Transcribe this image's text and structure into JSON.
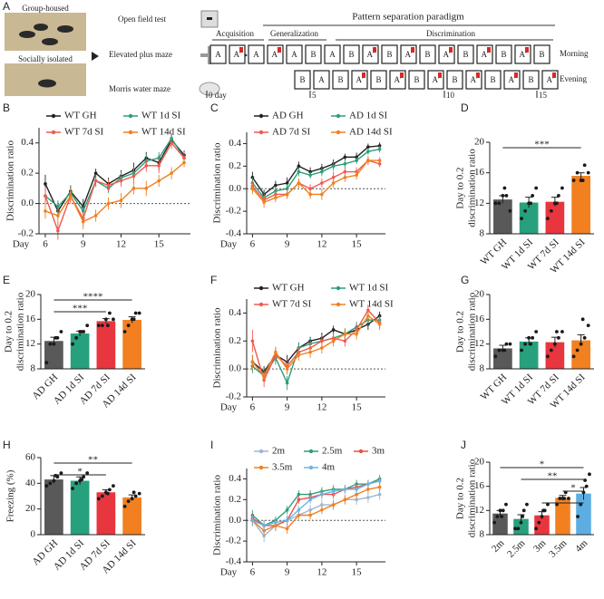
{
  "diagram": {
    "panel": "A",
    "housing": [
      "Group-housed",
      "Socially isolated"
    ],
    "tests": [
      "Open field test",
      "Elevated plus maze",
      "Morris water maze"
    ],
    "paradigm": "Pattern separation paradigm",
    "phases": [
      "Acquisition",
      "Generalization",
      "Discrimination"
    ],
    "sessions": [
      "Morning",
      "Evening"
    ],
    "morning": [
      "A",
      "A'",
      "A",
      "A'",
      "A",
      "B",
      "A",
      "B",
      "A'",
      "B",
      "A'",
      "B",
      "A'",
      "B",
      "A'",
      "B",
      "A'",
      "B"
    ],
    "evening": [
      "B",
      "A",
      "B",
      "A'",
      "B",
      "A'",
      "B",
      "A'",
      "B",
      "A'",
      "B",
      "A'",
      "B",
      "A'"
    ],
    "days": [
      "0 day",
      "5",
      "10",
      "15"
    ]
  },
  "chart_data": [
    {
      "panel": "B",
      "type": "line",
      "ylabel": "Discrimination ratio",
      "xlabel": "Day",
      "x": [
        6,
        7,
        8,
        9,
        10,
        11,
        12,
        13,
        14,
        15,
        16,
        17
      ],
      "xlim": [
        5.5,
        17.5
      ],
      "xticks": [
        6,
        9,
        12,
        15
      ],
      "ylim": [
        -0.2,
        0.5
      ],
      "yticks": [
        -0.2,
        {
          "value": 0,
          "label": "0.0"
        },
        0.2,
        0.4
      ],
      "zero_line": true,
      "series": [
        {
          "name": "WT GH",
          "color": "#222222",
          "values": [
            0.13,
            -0.05,
            0.08,
            -0.02,
            0.2,
            0.13,
            0.18,
            0.22,
            0.3,
            0.27,
            0.42,
            0.32
          ],
          "errors": [
            0.06,
            0.05,
            0.04,
            0.05,
            0.03,
            0.04,
            0.04,
            0.05,
            0.04,
            0.05,
            0.03,
            0.03
          ]
        },
        {
          "name": "WT 1d SI",
          "color": "#2e9e7a",
          "values": [
            0.05,
            -0.02,
            0.07,
            -0.05,
            0.15,
            0.1,
            0.17,
            0.2,
            0.28,
            0.3,
            0.43,
            0.3
          ],
          "errors": [
            0.05,
            0.04,
            0.05,
            0.04,
            0.04,
            0.03,
            0.04,
            0.04,
            0.05,
            0.04,
            0.03,
            0.04
          ]
        },
        {
          "name": "WT 7d SI",
          "color": "#ef5a50",
          "values": [
            0.05,
            -0.18,
            0.05,
            -0.1,
            0.15,
            0.12,
            0.15,
            0.18,
            0.25,
            0.25,
            0.4,
            0.3
          ],
          "errors": [
            0.06,
            0.06,
            0.05,
            0.05,
            0.04,
            0.04,
            0.04,
            0.05,
            0.04,
            0.05,
            0.04,
            0.04
          ]
        },
        {
          "name": "WT 14d SI",
          "color": "#f0801f",
          "values": [
            -0.05,
            -0.08,
            0.05,
            -0.12,
            -0.08,
            0.0,
            0.02,
            0.1,
            0.1,
            0.15,
            0.2,
            0.27
          ],
          "errors": [
            0.05,
            0.05,
            0.04,
            0.05,
            0.04,
            0.04,
            0.05,
            0.04,
            0.05,
            0.04,
            0.04,
            0.03
          ]
        }
      ]
    },
    {
      "panel": "C",
      "type": "line",
      "ylabel": "Discrimination ratio",
      "xlabel": "Day",
      "x": [
        6,
        7,
        8,
        9,
        10,
        11,
        12,
        13,
        14,
        15,
        16,
        17
      ],
      "xlim": [
        5.5,
        17.5
      ],
      "xticks": [
        6,
        9,
        12,
        15
      ],
      "ylim": [
        -0.4,
        0.5
      ],
      "yticks": [
        -0.4,
        -0.2,
        {
          "value": 0,
          "label": "0.0"
        },
        0.2,
        0.4
      ],
      "zero_line": true,
      "series": [
        {
          "name": "AD GH",
          "color": "#222222",
          "values": [
            0.1,
            -0.05,
            0.03,
            0.05,
            0.2,
            0.15,
            0.18,
            0.22,
            0.28,
            0.28,
            0.37,
            0.38
          ],
          "errors": [
            0.05,
            0.04,
            0.04,
            0.05,
            0.04,
            0.04,
            0.04,
            0.04,
            0.03,
            0.04,
            0.03,
            0.03
          ]
        },
        {
          "name": "AD 1d SI",
          "color": "#2e9e7a",
          "values": [
            0.05,
            -0.08,
            -0.02,
            0.0,
            0.15,
            0.12,
            0.15,
            0.2,
            0.22,
            0.25,
            0.33,
            0.35
          ],
          "errors": [
            0.05,
            0.05,
            0.04,
            0.04,
            0.04,
            0.03,
            0.04,
            0.04,
            0.04,
            0.03,
            0.03,
            0.03
          ]
        },
        {
          "name": "AD 7d SI",
          "color": "#ef5a50",
          "values": [
            0.02,
            -0.1,
            -0.05,
            -0.05,
            0.05,
            0.0,
            0.05,
            0.1,
            0.15,
            0.15,
            0.25,
            0.22
          ],
          "errors": [
            0.05,
            0.05,
            0.05,
            0.04,
            0.04,
            0.04,
            0.04,
            0.05,
            0.04,
            0.04,
            0.04,
            0.03
          ]
        },
        {
          "name": "AD 14d SI",
          "color": "#f0801f",
          "values": [
            0.0,
            -0.12,
            -0.08,
            -0.05,
            0.05,
            -0.05,
            -0.05,
            0.05,
            0.1,
            0.12,
            0.25,
            0.25
          ],
          "errors": [
            0.05,
            0.05,
            0.04,
            0.04,
            0.04,
            0.04,
            0.05,
            0.04,
            0.04,
            0.04,
            0.03,
            0.03
          ]
        }
      ]
    },
    {
      "panel": "D",
      "type": "bar",
      "ylabel": [
        "Day to 0.2",
        "discrimination ratio"
      ],
      "categories": [
        "WT GH",
        "WT 1d SI",
        "WT 7d SI",
        "WT 14d SI"
      ],
      "colors": [
        "#595959",
        "#27a07d",
        "#e8363f",
        "#f28021"
      ],
      "values": [
        12.5,
        12.1,
        12.2,
        15.6
      ],
      "errors": [
        0.5,
        0.7,
        0.6,
        0.4
      ],
      "points": [
        [
          12,
          12,
          13,
          13,
          11,
          14
        ],
        [
          10,
          11,
          12,
          13,
          14,
          12
        ],
        [
          10,
          11,
          12,
          13,
          14,
          12
        ],
        [
          15,
          16,
          15,
          17,
          16,
          15
        ]
      ],
      "ylim": [
        8,
        20
      ],
      "yticks": [
        8,
        12,
        16,
        20
      ],
      "significance": [
        {
          "bars": [
            0,
            3
          ],
          "label": "***"
        }
      ]
    },
    {
      "panel": "E",
      "type": "bar",
      "ylabel": [
        "Day to 0.2",
        "discrimination ratio"
      ],
      "categories": [
        "AD GH",
        "AD 1d SI",
        "AD 7d SI",
        "AD 14d SI"
      ],
      "colors": [
        "#595959",
        "#27a07d",
        "#e8363f",
        "#f28021"
      ],
      "values": [
        12.5,
        13.7,
        15.7,
        15.9
      ],
      "errors": [
        0.6,
        0.4,
        0.4,
        0.5
      ],
      "points": [
        [
          9,
          12,
          12,
          13,
          14,
          13
        ],
        [
          12,
          13,
          14,
          14,
          15,
          14
        ],
        [
          15,
          15,
          16,
          17,
          16,
          15
        ],
        [
          14,
          15,
          16,
          17,
          17,
          16
        ]
      ],
      "ylim": [
        8,
        20
      ],
      "yticks": [
        8,
        12,
        16,
        20
      ],
      "significance": [
        {
          "bars": [
            0,
            3
          ],
          "label": "****"
        },
        {
          "bars": [
            0,
            2
          ],
          "label": "***"
        }
      ]
    },
    {
      "panel": "F",
      "type": "line",
      "ylabel": "Discrimination ratio",
      "xlabel": "Day",
      "x": [
        6,
        7,
        8,
        9,
        10,
        11,
        12,
        13,
        14,
        15,
        16,
        17
      ],
      "xlim": [
        5.5,
        17.5
      ],
      "xticks": [
        6,
        9,
        12,
        15
      ],
      "ylim": [
        -0.2,
        0.5
      ],
      "yticks": [
        -0.2,
        {
          "value": 0,
          "label": "0.0"
        },
        0.2,
        0.4
      ],
      "zero_line": true,
      "series": [
        {
          "name": "WT GH",
          "color": "#222222",
          "values": [
            0.05,
            -0.02,
            0.1,
            0.05,
            0.15,
            0.2,
            0.22,
            0.28,
            0.25,
            0.28,
            0.32,
            0.38
          ],
          "errors": [
            0.05,
            0.04,
            0.04,
            0.05,
            0.04,
            0.03,
            0.04,
            0.03,
            0.04,
            0.04,
            0.04,
            0.03
          ]
        },
        {
          "name": "WT 1d SI",
          "color": "#2e9e7a",
          "values": [
            0.02,
            -0.05,
            0.08,
            -0.1,
            0.15,
            0.18,
            0.2,
            0.22,
            0.25,
            0.3,
            0.35,
            0.35
          ],
          "errors": [
            0.05,
            0.04,
            0.05,
            0.05,
            0.04,
            0.04,
            0.04,
            0.04,
            0.03,
            0.04,
            0.04,
            0.03
          ]
        },
        {
          "name": "WT 7d SI",
          "color": "#ef5a50",
          "values": [
            0.2,
            -0.08,
            0.1,
            0.02,
            0.12,
            0.15,
            0.2,
            0.22,
            0.2,
            0.28,
            0.42,
            0.33
          ],
          "errors": [
            0.08,
            0.05,
            0.05,
            0.05,
            0.04,
            0.04,
            0.04,
            0.04,
            0.04,
            0.04,
            0.04,
            0.04
          ]
        },
        {
          "name": "WT 14d SI",
          "color": "#f0801f",
          "values": [
            0.05,
            -0.05,
            0.12,
            0.0,
            0.1,
            0.12,
            0.15,
            0.2,
            0.25,
            0.25,
            0.38,
            0.32
          ],
          "errors": [
            0.05,
            0.04,
            0.04,
            0.04,
            0.04,
            0.04,
            0.04,
            0.04,
            0.04,
            0.04,
            0.04,
            0.04
          ]
        }
      ]
    },
    {
      "panel": "G",
      "type": "bar",
      "ylabel": [
        "Day to 0.2",
        "discrimination ratio"
      ],
      "categories": [
        "WT GH",
        "WT 1d SI",
        "WT 7d SI",
        "WT 14d SI"
      ],
      "colors": [
        "#595959",
        "#27a07d",
        "#e8363f",
        "#f28021"
      ],
      "values": [
        11.3,
        12.4,
        12.3,
        12.6
      ],
      "errors": [
        0.5,
        0.6,
        0.8,
        0.9
      ],
      "points": [
        [
          10,
          11,
          11,
          12,
          12,
          11
        ],
        [
          11,
          12,
          13,
          13,
          14,
          12
        ],
        [
          10,
          11,
          12,
          13,
          14,
          14
        ],
        [
          10,
          11,
          12,
          13,
          15,
          16
        ]
      ],
      "ylim": [
        8,
        20
      ],
      "yticks": [
        8,
        12,
        16,
        20
      ],
      "significance": []
    },
    {
      "panel": "H",
      "type": "bar",
      "ylabel": "Freezing (%)",
      "categories": [
        "AD GH",
        "AD 1d SI",
        "AD 7d SI",
        "AD 14d SI"
      ],
      "colors": [
        "#595959",
        "#27a07d",
        "#e8363f",
        "#f28021"
      ],
      "values": [
        43,
        42,
        33,
        29
      ],
      "errors": [
        3,
        3,
        2,
        2
      ],
      "points": [
        [
          38,
          40,
          42,
          45,
          48,
          46
        ],
        [
          36,
          40,
          42,
          45,
          48,
          43
        ],
        [
          28,
          30,
          33,
          35,
          38,
          32
        ],
        [
          22,
          26,
          28,
          30,
          32,
          33
        ]
      ],
      "ylim": [
        0,
        60
      ],
      "yticks": [
        0,
        20,
        40,
        60
      ],
      "significance": [
        {
          "bars": [
            0,
            3
          ],
          "label": "**"
        },
        {
          "bars": [
            0,
            2
          ],
          "label": "*"
        }
      ]
    },
    {
      "panel": "I",
      "type": "line",
      "ylabel": "Discrimination ratio",
      "xlabel": "Day",
      "x": [
        6,
        7,
        8,
        9,
        10,
        11,
        12,
        13,
        14,
        15,
        16,
        17
      ],
      "xlim": [
        5.5,
        17.5
      ],
      "xticks": [
        6,
        9,
        12,
        15
      ],
      "ylim": [
        -0.4,
        0.5
      ],
      "yticks": [
        -0.4,
        -0.2,
        {
          "value": 0,
          "label": "0.0"
        },
        0.2,
        0.4
      ],
      "zero_line": true,
      "series": [
        {
          "name": "2m",
          "color": "#9bb7d4",
          "values": [
            0.0,
            -0.15,
            -0.05,
            0.0,
            0.05,
            0.1,
            0.15,
            0.15,
            0.2,
            0.2,
            0.22,
            0.25
          ],
          "errors": [
            0.06,
            0.06,
            0.05,
            0.05,
            0.05,
            0.05,
            0.05,
            0.05,
            0.05,
            0.05,
            0.05,
            0.05
          ]
        },
        {
          "name": "2.5m",
          "color": "#2e9e7a",
          "values": [
            0.05,
            -0.05,
            0.0,
            0.1,
            0.25,
            0.25,
            0.28,
            0.3,
            0.3,
            0.35,
            0.35,
            0.4
          ],
          "errors": [
            0.05,
            0.05,
            0.04,
            0.04,
            0.04,
            0.04,
            0.04,
            0.04,
            0.04,
            0.04,
            0.04,
            0.04
          ]
        },
        {
          "name": "3m",
          "color": "#e8504a",
          "values": [
            0.02,
            -0.05,
            -0.05,
            0.0,
            0.2,
            0.22,
            0.25,
            0.25,
            0.3,
            0.32,
            0.35,
            0.38
          ],
          "errors": [
            0.05,
            0.05,
            0.05,
            0.04,
            0.04,
            0.04,
            0.04,
            0.04,
            0.04,
            0.04,
            0.04,
            0.04
          ]
        },
        {
          "name": "3.5m",
          "color": "#f08020",
          "values": [
            0.0,
            -0.1,
            -0.05,
            -0.08,
            0.05,
            0.05,
            0.1,
            0.15,
            0.2,
            0.25,
            0.3,
            0.32
          ],
          "errors": [
            0.05,
            0.05,
            0.05,
            0.05,
            0.04,
            0.04,
            0.04,
            0.04,
            0.04,
            0.04,
            0.04,
            0.04
          ]
        },
        {
          "name": "4m",
          "color": "#6cb4e4",
          "values": [
            0.0,
            -0.05,
            -0.02,
            0.0,
            0.1,
            0.2,
            0.25,
            0.28,
            0.3,
            0.3,
            0.35,
            0.38
          ],
          "errors": [
            0.05,
            0.05,
            0.05,
            0.05,
            0.04,
            0.04,
            0.04,
            0.04,
            0.04,
            0.04,
            0.04,
            0.04
          ]
        }
      ]
    },
    {
      "panel": "J",
      "type": "bar",
      "ylabel": [
        "Day to 0.2",
        "discrimination ratio"
      ],
      "categories": [
        "2m",
        "2.5m",
        "3m",
        "3.5m",
        "4m"
      ],
      "colors": [
        "#595959",
        "#27a07d",
        "#e8363f",
        "#f28021",
        "#5dade2"
      ],
      "values": [
        11.5,
        10.6,
        11.2,
        14.1,
        14.8
      ],
      "errors": [
        0.5,
        0.7,
        0.6,
        0.4,
        1.0
      ],
      "points": [
        [
          10,
          11,
          12,
          12,
          13,
          11
        ],
        [
          9,
          9,
          10,
          12,
          13,
          11
        ],
        [
          9,
          10,
          11,
          12,
          13,
          12
        ],
        [
          13,
          14,
          14,
          15,
          14,
          14
        ],
        [
          11,
          13,
          15,
          16,
          18,
          17
        ]
      ],
      "ylim": [
        8,
        20
      ],
      "yticks": [
        8,
        12,
        16,
        20
      ],
      "significance": [
        {
          "bars": [
            0,
            4
          ],
          "label": "*"
        },
        {
          "bars": [
            1,
            4
          ],
          "label": "**"
        },
        {
          "bars": [
            3,
            4
          ],
          "label": "*"
        },
        {
          "bars": [
            2,
            4
          ],
          "label": "*"
        }
      ]
    }
  ]
}
